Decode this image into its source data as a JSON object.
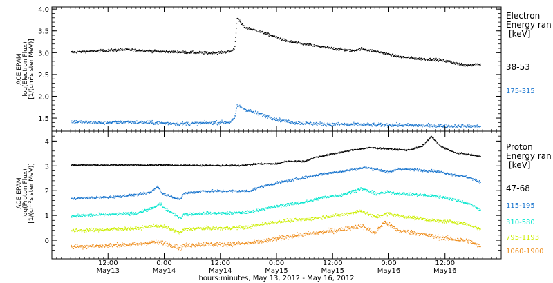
{
  "chart_data": [
    {
      "type": "scatter",
      "panel": "electron",
      "ylabel_lines": [
        "ACE EPAM",
        "log(Electron Flux)",
        "[1/(cm²s ster MeV)]"
      ],
      "ylim": [
        1.2,
        4.05
      ],
      "yticks": [
        1.5,
        2.0,
        2.5,
        3.0,
        3.5,
        4.0
      ],
      "ytick_labels": [
        "1.5",
        "2.0",
        "2.5",
        "3.0",
        "3.5",
        "4.0"
      ],
      "legend_title": [
        "Electron",
        "Energy ran",
        "[keV]"
      ],
      "series": [
        {
          "name": "38-53",
          "color": "#000000",
          "noise": 0.03,
          "points": [
            [
              0,
              3.02
            ],
            [
              6,
              3.05
            ],
            [
              12,
              3.08
            ],
            [
              18,
              3.04
            ],
            [
              24,
              3.02
            ],
            [
              30,
              3.0
            ],
            [
              34,
              3.03
            ],
            [
              35,
              3.1
            ],
            [
              35.5,
              3.8
            ],
            [
              37,
              3.6
            ],
            [
              40,
              3.5
            ],
            [
              43,
              3.4
            ],
            [
              46,
              3.28
            ],
            [
              50,
              3.2
            ],
            [
              55,
              3.12
            ],
            [
              60,
              3.05
            ],
            [
              62,
              3.1
            ],
            [
              66,
              3.02
            ],
            [
              70,
              2.92
            ],
            [
              74,
              2.87
            ],
            [
              78,
              2.85
            ],
            [
              81,
              2.8
            ],
            [
              84,
              2.72
            ],
            [
              87.5,
              2.75
            ]
          ]
        },
        {
          "name": "175-315",
          "color": "#1874cd",
          "noise": 0.04,
          "points": [
            [
              0,
              1.43
            ],
            [
              6,
              1.4
            ],
            [
              12,
              1.42
            ],
            [
              18,
              1.4
            ],
            [
              24,
              1.38
            ],
            [
              30,
              1.4
            ],
            [
              34,
              1.42
            ],
            [
              35,
              1.5
            ],
            [
              35.5,
              1.8
            ],
            [
              38,
              1.68
            ],
            [
              41,
              1.58
            ],
            [
              44,
              1.48
            ],
            [
              48,
              1.4
            ],
            [
              55,
              1.37
            ],
            [
              62,
              1.36
            ],
            [
              70,
              1.35
            ],
            [
              78,
              1.33
            ],
            [
              87.5,
              1.32
            ]
          ]
        }
      ]
    },
    {
      "type": "scatter",
      "panel": "proton",
      "ylabel_lines": [
        "ACE EPAM",
        "log(Proton Flux)",
        "[1/(cm²s ster MeV)]"
      ],
      "ylim": [
        -0.75,
        4.4
      ],
      "yticks": [
        0,
        1,
        2,
        3,
        4
      ],
      "ytick_labels": [
        "0",
        "1",
        "2",
        "3",
        "4"
      ],
      "legend_title": [
        "Proton",
        "Energy ran",
        "[keV]"
      ],
      "series": [
        {
          "name": "47-68",
          "color": "#000000",
          "noise": 0.03,
          "points": [
            [
              0,
              3.05
            ],
            [
              10,
              3.05
            ],
            [
              20,
              3.05
            ],
            [
              30,
              3.03
            ],
            [
              36,
              3.03
            ],
            [
              40,
              3.1
            ],
            [
              44,
              3.1
            ],
            [
              46,
              3.2
            ],
            [
              50,
              3.2
            ],
            [
              52,
              3.35
            ],
            [
              56,
              3.5
            ],
            [
              60,
              3.65
            ],
            [
              64,
              3.75
            ],
            [
              68,
              3.7
            ],
            [
              72,
              3.65
            ],
            [
              75,
              3.8
            ],
            [
              77,
              4.2
            ],
            [
              79,
              3.8
            ],
            [
              82,
              3.55
            ],
            [
              84,
              3.5
            ],
            [
              87.5,
              3.4
            ]
          ]
        },
        {
          "name": "115-195",
          "color": "#1874cd",
          "noise": 0.05,
          "points": [
            [
              0,
              1.7
            ],
            [
              8,
              1.75
            ],
            [
              14,
              1.85
            ],
            [
              17,
              1.95
            ],
            [
              18.5,
              2.2
            ],
            [
              19.5,
              1.9
            ],
            [
              22,
              1.75
            ],
            [
              23.5,
              1.65
            ],
            [
              24,
              1.9
            ],
            [
              28,
              2.0
            ],
            [
              33,
              2.0
            ],
            [
              38,
              2.0
            ],
            [
              42,
              2.25
            ],
            [
              46,
              2.4
            ],
            [
              50,
              2.55
            ],
            [
              54,
              2.7
            ],
            [
              58,
              2.8
            ],
            [
              63,
              2.95
            ],
            [
              66,
              2.85
            ],
            [
              68,
              2.75
            ],
            [
              70,
              2.9
            ],
            [
              74,
              2.85
            ],
            [
              78,
              2.8
            ],
            [
              82,
              2.65
            ],
            [
              85,
              2.55
            ],
            [
              87.5,
              2.35
            ]
          ]
        },
        {
          "name": "310-580",
          "color": "#00e5cd",
          "noise": 0.06,
          "points": [
            [
              0,
              1.0
            ],
            [
              8,
              1.05
            ],
            [
              14,
              1.1
            ],
            [
              18,
              1.35
            ],
            [
              19,
              1.5
            ],
            [
              20,
              1.3
            ],
            [
              23.5,
              0.9
            ],
            [
              24,
              1.05
            ],
            [
              28,
              1.1
            ],
            [
              33,
              1.1
            ],
            [
              38,
              1.15
            ],
            [
              42,
              1.3
            ],
            [
              46,
              1.45
            ],
            [
              50,
              1.55
            ],
            [
              54,
              1.75
            ],
            [
              58,
              1.85
            ],
            [
              62,
              2.1
            ],
            [
              65,
              1.9
            ],
            [
              68,
              1.95
            ],
            [
              70,
              1.9
            ],
            [
              74,
              1.85
            ],
            [
              78,
              1.8
            ],
            [
              82,
              1.65
            ],
            [
              85,
              1.5
            ],
            [
              87.5,
              1.25
            ]
          ]
        },
        {
          "name": "795-1193",
          "color": "#ccee00",
          "noise": 0.07,
          "points": [
            [
              0,
              0.4
            ],
            [
              8,
              0.45
            ],
            [
              14,
              0.5
            ],
            [
              18,
              0.6
            ],
            [
              20,
              0.55
            ],
            [
              23.5,
              0.3
            ],
            [
              24,
              0.45
            ],
            [
              28,
              0.5
            ],
            [
              33,
              0.5
            ],
            [
              38,
              0.55
            ],
            [
              42,
              0.7
            ],
            [
              46,
              0.8
            ],
            [
              50,
              0.85
            ],
            [
              54,
              0.95
            ],
            [
              58,
              1.05
            ],
            [
              62,
              1.2
            ],
            [
              65,
              0.95
            ],
            [
              68,
              1.1
            ],
            [
              70,
              1.0
            ],
            [
              74,
              0.9
            ],
            [
              78,
              0.8
            ],
            [
              82,
              0.75
            ],
            [
              85,
              0.65
            ],
            [
              87.5,
              0.45
            ]
          ]
        },
        {
          "name": "1060-1900",
          "color": "#ee8c1a",
          "noise": 0.09,
          "points": [
            [
              0,
              -0.25
            ],
            [
              8,
              -0.2
            ],
            [
              14,
              -0.15
            ],
            [
              18,
              -0.05
            ],
            [
              20,
              -0.1
            ],
            [
              23.5,
              -0.3
            ],
            [
              24,
              -0.2
            ],
            [
              28,
              -0.15
            ],
            [
              33,
              -0.15
            ],
            [
              38,
              -0.1
            ],
            [
              42,
              0.0
            ],
            [
              46,
              0.15
            ],
            [
              50,
              0.25
            ],
            [
              54,
              0.35
            ],
            [
              58,
              0.45
            ],
            [
              62,
              0.6
            ],
            [
              65,
              0.3
            ],
            [
              67,
              0.75
            ],
            [
              70,
              0.4
            ],
            [
              74,
              0.3
            ],
            [
              78,
              0.15
            ],
            [
              82,
              0.05
            ],
            [
              85,
              0.0
            ],
            [
              87.5,
              -0.25
            ]
          ]
        }
      ]
    }
  ],
  "x_axis": {
    "xlim": [
      0,
      96
    ],
    "ticks": [
      {
        "x": 12,
        "time": "12:00",
        "day": "May13"
      },
      {
        "x": 24,
        "time": "0:00",
        "day": "May14"
      },
      {
        "x": 36,
        "time": "12:00",
        "day": "May14"
      },
      {
        "x": 48,
        "time": "0:00",
        "day": "May15"
      },
      {
        "x": 60,
        "time": "12:00",
        "day": "May15"
      },
      {
        "x": 72,
        "time": "0:00",
        "day": "May16"
      },
      {
        "x": 84,
        "time": "12:00",
        "day": "May16"
      }
    ],
    "minor_step": 1,
    "xlabel": "hours:minutes, May 13, 2012 - May 16, 2012",
    "x_offset_hours": 4
  }
}
